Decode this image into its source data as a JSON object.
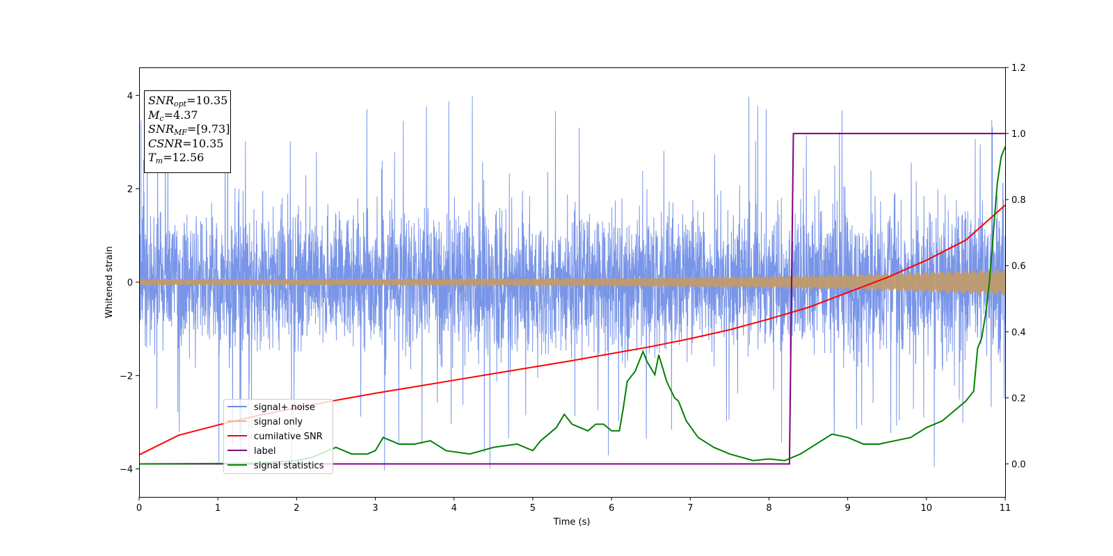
{
  "chart_data": {
    "type": "line",
    "xlabel": "Time (s)",
    "ylabel": "Whitened strain",
    "xlim": [
      0,
      11
    ],
    "ylim_left": [
      -4.6,
      4.6
    ],
    "ylim_right": [
      -0.1,
      1.2
    ],
    "x_ticks": [
      "0",
      "1",
      "2",
      "3",
      "4",
      "5",
      "6",
      "7",
      "8",
      "9",
      "10",
      "11"
    ],
    "y_ticks_left": [
      "4",
      "2",
      "0",
      "−2",
      "−4"
    ],
    "y_ticks_right": [
      "1.2",
      "1.0",
      "0.8",
      "0.6",
      "0.4",
      "0.2",
      "0.0"
    ],
    "legend_position": "lower-left",
    "legend": [
      "signal+ noise",
      "signal only",
      "cumilative SNR",
      "label",
      "signal statistics"
    ],
    "colors": {
      "signal_noise": "#6a8ae6",
      "signal_only": "#f5b86a",
      "cumulative_snr": "#ff0000",
      "label": "#800080",
      "signal_statistics": "#008000"
    },
    "series": [
      {
        "name": "cumilative SNR",
        "axis": "left",
        "x": [
          0,
          0.5,
          1,
          1.5,
          2,
          2.5,
          3,
          3.5,
          4,
          4.5,
          5,
          5.5,
          6,
          6.5,
          7,
          7.5,
          8,
          8.5,
          9,
          9.5,
          10,
          10.5,
          11
        ],
        "y": [
          -3.7,
          -3.28,
          -3.06,
          -2.86,
          -2.69,
          -2.53,
          -2.38,
          -2.24,
          -2.1,
          -1.96,
          -1.82,
          -1.68,
          -1.53,
          -1.38,
          -1.21,
          -1.02,
          -0.79,
          -0.54,
          -0.22,
          0.1,
          0.47,
          0.9,
          1.65
        ]
      },
      {
        "name": "label",
        "axis": "right",
        "x": [
          0,
          8.26,
          8.31,
          11
        ],
        "y": [
          0,
          0,
          1,
          1
        ]
      },
      {
        "name": "signal statistics",
        "axis": "right",
        "x": [
          0,
          1,
          1.5,
          2,
          2.2,
          2.4,
          2.5,
          2.7,
          2.9,
          3.0,
          3.1,
          3.3,
          3.5,
          3.7,
          3.9,
          4.2,
          4.5,
          4.8,
          5.0,
          5.1,
          5.2,
          5.3,
          5.4,
          5.5,
          5.6,
          5.7,
          5.8,
          5.9,
          6.0,
          6.1,
          6.15,
          6.2,
          6.3,
          6.4,
          6.45,
          6.55,
          6.6,
          6.7,
          6.8,
          6.85,
          6.95,
          7.1,
          7.3,
          7.5,
          7.8,
          8.0,
          8.2,
          8.4,
          8.6,
          8.8,
          9.0,
          9.2,
          9.4,
          9.6,
          9.8,
          10.0,
          10.2,
          10.4,
          10.5,
          10.6,
          10.65,
          10.7,
          10.75,
          10.8,
          10.85,
          10.9,
          10.95,
          11.0
        ],
        "y": [
          0.0,
          0.001,
          0.002,
          0.01,
          0.02,
          0.04,
          0.05,
          0.03,
          0.03,
          0.04,
          0.08,
          0.06,
          0.06,
          0.07,
          0.04,
          0.03,
          0.05,
          0.06,
          0.04,
          0.07,
          0.09,
          0.11,
          0.15,
          0.12,
          0.11,
          0.1,
          0.12,
          0.12,
          0.1,
          0.1,
          0.17,
          0.25,
          0.28,
          0.34,
          0.31,
          0.27,
          0.33,
          0.25,
          0.2,
          0.19,
          0.13,
          0.08,
          0.05,
          0.03,
          0.01,
          0.015,
          0.01,
          0.03,
          0.06,
          0.09,
          0.08,
          0.06,
          0.06,
          0.07,
          0.08,
          0.11,
          0.13,
          0.17,
          0.19,
          0.22,
          0.35,
          0.38,
          0.45,
          0.55,
          0.7,
          0.85,
          0.93,
          0.96
        ]
      },
      {
        "name": "signal only",
        "axis": "left",
        "envelope_x": [
          0,
          2,
          4,
          6,
          8,
          9,
          10,
          11
        ],
        "envelope_amp": [
          0.06,
          0.06,
          0.07,
          0.08,
          0.11,
          0.14,
          0.19,
          0.24
        ]
      },
      {
        "name": "signal+ noise",
        "axis": "left",
        "typical_range": [
          -2.2,
          2.4
        ],
        "extremes": [
          -4.1,
          4.15
        ]
      }
    ]
  },
  "stats": {
    "snr_opt": {
      "base": "SNR",
      "sub": "opt",
      "value": "=10.35"
    },
    "mc": {
      "base": "M",
      "sub": "c",
      "value": "=4.37"
    },
    "snr_mf": {
      "base": "SNR",
      "sub": "MF",
      "value": "=[9.73]"
    },
    "csnr": {
      "base": "CSNR",
      "value": "=10.35"
    },
    "tm": {
      "base": "T",
      "sub": "m",
      "value": "=12.56"
    }
  }
}
